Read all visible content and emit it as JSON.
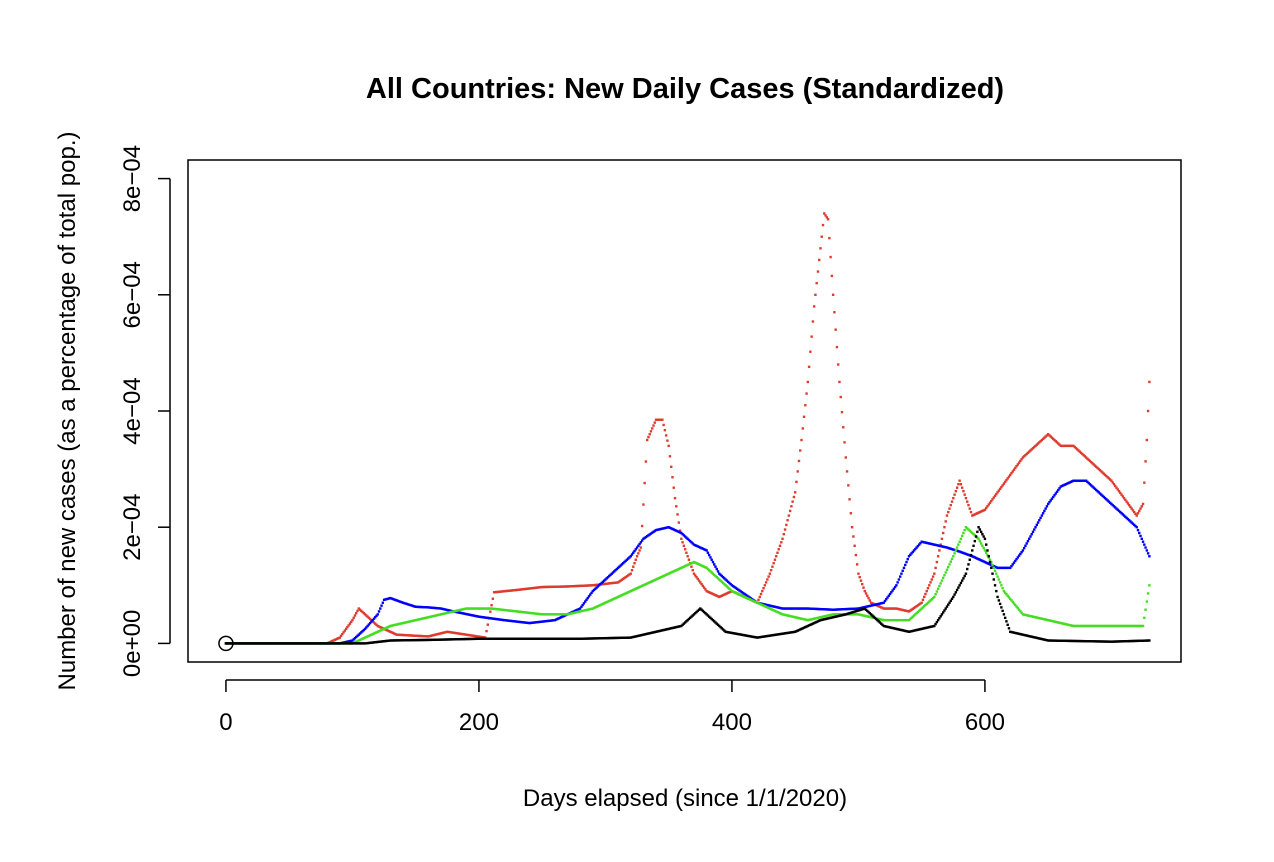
{
  "chart_data": {
    "type": "scatter",
    "title": "All Countries: New Daily Cases (Standardized)",
    "xlabel": "Days elapsed (since 1/1/2020)",
    "ylabel": "Number of new cases (as a percentage of total pop.)",
    "xlim": [
      -30,
      755
    ],
    "ylim": [
      -3.2e-05,
      0.000832
    ],
    "x_ticks": [
      0,
      200,
      400,
      600
    ],
    "x_tick_labels": [
      "0",
      "200",
      "400",
      "600"
    ],
    "y_ticks": [
      0,
      0.0002,
      0.0004,
      0.0006,
      0.0008
    ],
    "y_tick_labels": [
      "0e+00",
      "2e−04",
      "4e−04",
      "6e−04",
      "8e−04"
    ],
    "grid": false,
    "legend": "none",
    "marker": {
      "x": 0,
      "y": 0,
      "shape": "open-circle"
    },
    "series": [
      {
        "color": "#df3b2f",
        "points": [
          [
            0,
            0
          ],
          [
            80,
            0
          ],
          [
            90,
            1e-05
          ],
          [
            100,
            4e-05
          ],
          [
            105,
            6e-05
          ],
          [
            110,
            5e-05
          ],
          [
            120,
            3e-05
          ],
          [
            135,
            1.5e-05
          ],
          [
            160,
            1.2e-05
          ],
          [
            175,
            2e-05
          ],
          [
            190,
            1.5e-05
          ],
          [
            205,
            1e-05
          ],
          [
            212,
            8.8e-05
          ],
          [
            230,
            9.2e-05
          ],
          [
            250,
            9.7e-05
          ],
          [
            270,
            9.8e-05
          ],
          [
            290,
            0.0001
          ],
          [
            310,
            0.000105
          ],
          [
            320,
            0.00012
          ],
          [
            325,
            0.00015
          ],
          [
            328,
            0.000165
          ],
          [
            333,
            0.00035
          ],
          [
            340,
            0.000385
          ],
          [
            345,
            0.000385
          ],
          [
            350,
            0.00034
          ],
          [
            355,
            0.00025
          ],
          [
            360,
            0.00018
          ],
          [
            370,
            0.00012
          ],
          [
            380,
            9e-05
          ],
          [
            390,
            8e-05
          ],
          [
            400,
            9e-05
          ],
          [
            410,
            8e-05
          ],
          [
            420,
            7e-05
          ],
          [
            430,
            0.00012
          ],
          [
            440,
            0.00018
          ],
          [
            450,
            0.00026
          ],
          [
            455,
            0.00035
          ],
          [
            460,
            0.00045
          ],
          [
            465,
            0.00058
          ],
          [
            470,
            0.00068
          ],
          [
            473,
            0.00074
          ],
          [
            476,
            0.00073
          ],
          [
            480,
            0.0006
          ],
          [
            485,
            0.00045
          ],
          [
            490,
            0.00032
          ],
          [
            495,
            0.0002
          ],
          [
            500,
            0.00012
          ],
          [
            505,
            9e-05
          ],
          [
            510,
            7e-05
          ],
          [
            520,
            6e-05
          ],
          [
            530,
            6e-05
          ],
          [
            540,
            5.5e-05
          ],
          [
            550,
            7e-05
          ],
          [
            560,
            0.00012
          ],
          [
            570,
            0.00022
          ],
          [
            580,
            0.00028
          ],
          [
            590,
            0.00022
          ],
          [
            600,
            0.00023
          ],
          [
            610,
            0.00026
          ],
          [
            620,
            0.00029
          ],
          [
            630,
            0.00032
          ],
          [
            640,
            0.00034
          ],
          [
            650,
            0.00036
          ],
          [
            660,
            0.00034
          ],
          [
            670,
            0.00034
          ],
          [
            680,
            0.00032
          ],
          [
            690,
            0.0003
          ],
          [
            700,
            0.00028
          ],
          [
            710,
            0.00025
          ],
          [
            720,
            0.00022
          ],
          [
            725,
            0.00024
          ],
          [
            728,
            0.00035
          ],
          [
            730,
            0.00045
          ]
        ]
      },
      {
        "color": "#0000ff",
        "points": [
          [
            0,
            0
          ],
          [
            90,
            0
          ],
          [
            100,
            5e-06
          ],
          [
            110,
            2.5e-05
          ],
          [
            120,
            5e-05
          ],
          [
            125,
            7.5e-05
          ],
          [
            130,
            7.8e-05
          ],
          [
            140,
            7e-05
          ],
          [
            150,
            6.3e-05
          ],
          [
            160,
            6.2e-05
          ],
          [
            170,
            6e-05
          ],
          [
            180,
            5.5e-05
          ],
          [
            200,
            4.6e-05
          ],
          [
            220,
            4e-05
          ],
          [
            240,
            3.5e-05
          ],
          [
            260,
            4e-05
          ],
          [
            280,
            6e-05
          ],
          [
            290,
            9e-05
          ],
          [
            300,
            0.00011
          ],
          [
            310,
            0.00013
          ],
          [
            320,
            0.00015
          ],
          [
            330,
            0.00018
          ],
          [
            340,
            0.000195
          ],
          [
            350,
            0.0002
          ],
          [
            360,
            0.00019
          ],
          [
            370,
            0.00017
          ],
          [
            380,
            0.00016
          ],
          [
            390,
            0.00012
          ],
          [
            400,
            0.0001
          ],
          [
            410,
            8.5e-05
          ],
          [
            420,
            7e-05
          ],
          [
            440,
            6e-05
          ],
          [
            460,
            6e-05
          ],
          [
            480,
            5.8e-05
          ],
          [
            500,
            6e-05
          ],
          [
            520,
            7e-05
          ],
          [
            530,
            0.0001
          ],
          [
            540,
            0.00015
          ],
          [
            550,
            0.000175
          ],
          [
            560,
            0.00017
          ],
          [
            570,
            0.000165
          ],
          [
            580,
            0.000158
          ],
          [
            590,
            0.00015
          ],
          [
            600,
            0.00014
          ],
          [
            610,
            0.00013
          ],
          [
            620,
            0.00013
          ],
          [
            630,
            0.00016
          ],
          [
            640,
            0.0002
          ],
          [
            650,
            0.00024
          ],
          [
            660,
            0.00027
          ],
          [
            670,
            0.00028
          ],
          [
            680,
            0.00028
          ],
          [
            690,
            0.00026
          ],
          [
            700,
            0.00024
          ],
          [
            710,
            0.00022
          ],
          [
            720,
            0.0002
          ],
          [
            730,
            0.00015
          ]
        ]
      },
      {
        "color": "#44dd22",
        "points": [
          [
            0,
            0
          ],
          [
            100,
            0
          ],
          [
            110,
            1e-05
          ],
          [
            130,
            3e-05
          ],
          [
            150,
            4e-05
          ],
          [
            170,
            5e-05
          ],
          [
            190,
            6e-05
          ],
          [
            210,
            6e-05
          ],
          [
            230,
            5.5e-05
          ],
          [
            250,
            5e-05
          ],
          [
            270,
            5e-05
          ],
          [
            290,
            6e-05
          ],
          [
            310,
            8e-05
          ],
          [
            330,
            0.0001
          ],
          [
            350,
            0.00012
          ],
          [
            370,
            0.00014
          ],
          [
            380,
            0.00013
          ],
          [
            390,
            0.00011
          ],
          [
            400,
            9e-05
          ],
          [
            420,
            7e-05
          ],
          [
            440,
            5e-05
          ],
          [
            460,
            4e-05
          ],
          [
            480,
            5e-05
          ],
          [
            500,
            5e-05
          ],
          [
            520,
            4e-05
          ],
          [
            540,
            4e-05
          ],
          [
            560,
            8e-05
          ],
          [
            575,
            0.00015
          ],
          [
            585,
            0.0002
          ],
          [
            595,
            0.00018
          ],
          [
            605,
            0.00014
          ],
          [
            615,
            9e-05
          ],
          [
            630,
            5e-05
          ],
          [
            650,
            4e-05
          ],
          [
            670,
            3e-05
          ],
          [
            690,
            3e-05
          ],
          [
            710,
            3e-05
          ],
          [
            725,
            3e-05
          ],
          [
            730,
            0.0001
          ]
        ]
      },
      {
        "color": "#000000",
        "points": [
          [
            0,
            0
          ],
          [
            110,
            0
          ],
          [
            130,
            5e-06
          ],
          [
            160,
            6e-06
          ],
          [
            200,
            8e-06
          ],
          [
            240,
            8e-06
          ],
          [
            280,
            8e-06
          ],
          [
            320,
            1e-05
          ],
          [
            340,
            2e-05
          ],
          [
            360,
            3e-05
          ],
          [
            375,
            6e-05
          ],
          [
            385,
            4e-05
          ],
          [
            395,
            2e-05
          ],
          [
            420,
            1e-05
          ],
          [
            450,
            2e-05
          ],
          [
            470,
            4e-05
          ],
          [
            490,
            5e-05
          ],
          [
            505,
            6e-05
          ],
          [
            520,
            3e-05
          ],
          [
            540,
            2e-05
          ],
          [
            560,
            3e-05
          ],
          [
            575,
            8e-05
          ],
          [
            585,
            0.00012
          ],
          [
            595,
            0.0002
          ],
          [
            600,
            0.00018
          ],
          [
            610,
            8e-05
          ],
          [
            620,
            2e-05
          ],
          [
            650,
            5e-06
          ],
          [
            700,
            3e-06
          ],
          [
            730,
            5e-06
          ]
        ]
      }
    ]
  }
}
